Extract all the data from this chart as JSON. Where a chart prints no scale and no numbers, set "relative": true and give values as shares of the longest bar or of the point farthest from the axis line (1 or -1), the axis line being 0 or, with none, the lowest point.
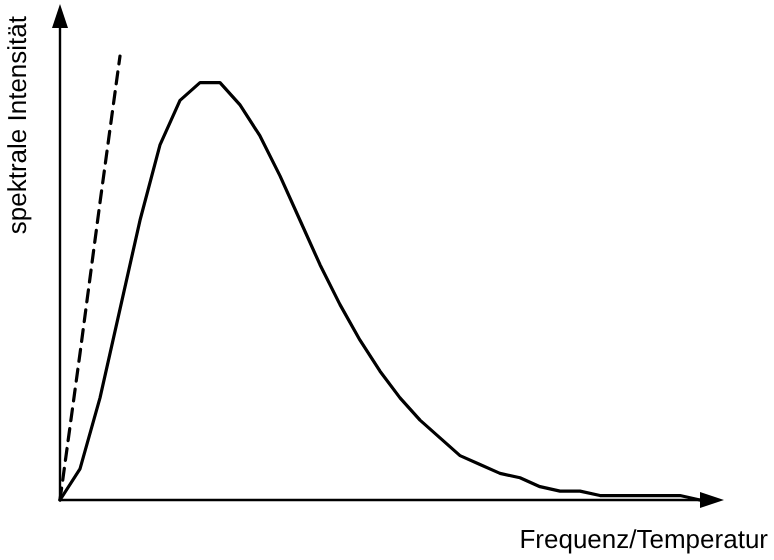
{
  "chart_data": {
    "type": "line",
    "relative": true,
    "xlabel": "Frequenz/Temperatur",
    "ylabel": "spektrale Intensität",
    "categories": [
      null,
      null,
      null,
      null,
      null,
      null,
      null,
      null,
      null,
      null,
      null,
      null,
      null,
      null,
      null,
      null,
      null,
      null,
      null,
      null,
      null,
      null,
      null,
      null,
      null,
      null,
      null,
      null,
      null,
      null,
      null,
      null,
      null
    ],
    "series": [
      {
        "color": "#000000",
        "line_style": "solid",
        "values": [
          0,
          0.07,
          0.23,
          0.43,
          0.63,
          0.8,
          0.9,
          0.94,
          0.94,
          0.89,
          0.82,
          0.73,
          0.63,
          0.53,
          0.44,
          0.36,
          0.29,
          0.23,
          0.18,
          0.14,
          0.1,
          0.08,
          0.06,
          0.05,
          0.03,
          0.02,
          0.02,
          0.01,
          0.01,
          0.01,
          0.01,
          0.01,
          0
        ]
      },
      {
        "color": "#000000",
        "line_style": "dashed",
        "values": [
          0,
          0.33,
          0.67,
          1,
          null,
          null,
          null,
          null,
          null,
          null,
          null,
          null,
          null,
          null,
          null,
          null,
          null,
          null,
          null,
          null,
          null,
          null,
          null,
          null,
          null,
          null,
          null,
          null,
          null,
          null,
          null,
          null,
          null
        ]
      }
    ],
    "marker": "none"
  }
}
